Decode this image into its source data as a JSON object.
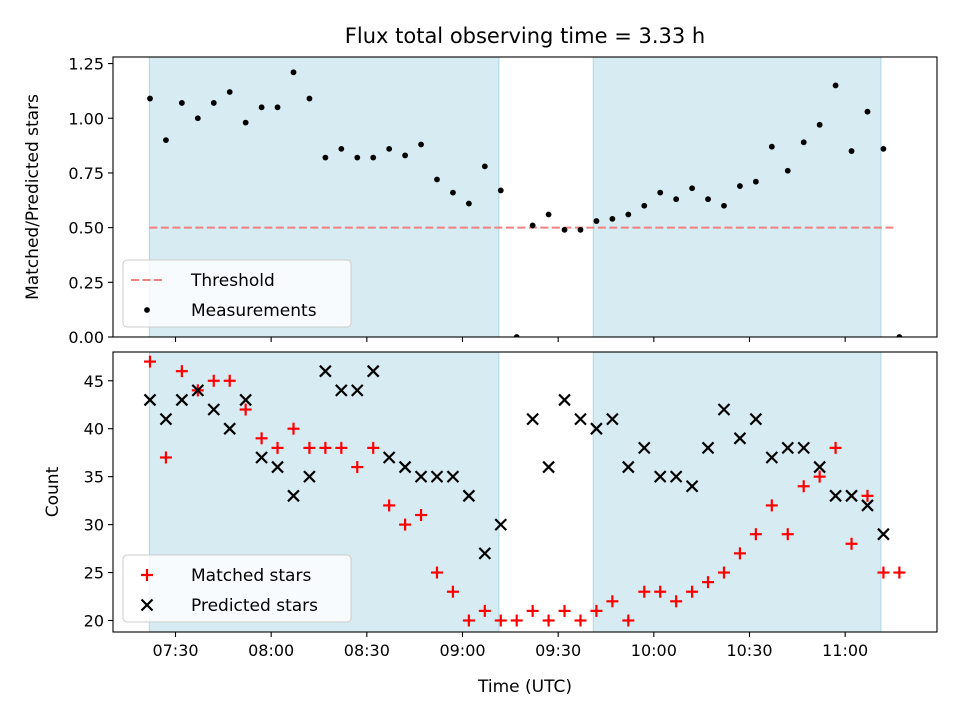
{
  "chart_data": {
    "title": "Flux total observing time = 3.33 h",
    "xlabel": "Time (UTC)",
    "x_ticks": [
      "07:30",
      "08:00",
      "08:30",
      "09:00",
      "09:30",
      "10:00",
      "10:30",
      "11:00"
    ],
    "x_tick_minutes": [
      450,
      480,
      510,
      540,
      570,
      600,
      630,
      660
    ],
    "x_range_minutes": [
      430.4,
      688.8
    ],
    "shaded_intervals_minutes": [
      [
        441.8,
        551.4
      ],
      [
        581.0,
        671.2
      ]
    ],
    "shade_color": "#add8e6",
    "panels": [
      {
        "type": "scatter",
        "ylabel": "Matched/Predicted stars",
        "ylim": [
          0.0,
          1.28
        ],
        "y_ticks": [
          "0.00",
          "0.25",
          "0.50",
          "0.75",
          "1.00",
          "1.25"
        ],
        "y_tick_values": [
          0.0,
          0.25,
          0.5,
          0.75,
          1.0,
          1.25
        ],
        "legend_position": "lower-left",
        "series": [
          {
            "name": "Threshold",
            "kind": "dashed-line",
            "color": "#f08080",
            "y": 0.5,
            "x_from": 441.8,
            "x_to": 676.2
          },
          {
            "name": "Measurements",
            "kind": "dot",
            "color": "#000000",
            "x": [
              442,
              447,
              452,
              457,
              462,
              467,
              472,
              477,
              482,
              487,
              492,
              497,
              502,
              507,
              512,
              517,
              522,
              527,
              532,
              537,
              542,
              547,
              552,
              557,
              562,
              567,
              572,
              577,
              582,
              587,
              592,
              597,
              602,
              607,
              612,
              617,
              622,
              627,
              632,
              637,
              642,
              647,
              652,
              657,
              662,
              667,
              672,
              677
            ],
            "y": [
              1.09,
              0.9,
              1.07,
              1.0,
              1.07,
              1.12,
              0.98,
              1.05,
              1.05,
              1.21,
              1.09,
              0.82,
              0.86,
              0.82,
              0.82,
              0.86,
              0.83,
              0.88,
              0.72,
              0.66,
              0.61,
              0.78,
              0.67,
              0.0,
              0.51,
              0.56,
              0.49,
              0.49,
              0.53,
              0.54,
              0.56,
              0.6,
              0.66,
              0.63,
              0.68,
              0.63,
              0.6,
              0.69,
              0.71,
              0.87,
              0.76,
              0.89,
              0.97,
              1.15,
              0.85,
              1.03,
              0.86,
              0.0
            ]
          }
        ]
      },
      {
        "type": "scatter",
        "ylabel": "Count",
        "ylim": [
          18.8,
          48.0
        ],
        "y_ticks": [
          "20",
          "25",
          "30",
          "35",
          "40",
          "45"
        ],
        "y_tick_values": [
          20,
          25,
          30,
          35,
          40,
          45
        ],
        "legend_position": "lower-left",
        "series": [
          {
            "name": "Matched stars",
            "kind": "plus",
            "color": "#ff0000",
            "x": [
              442,
              447,
              452,
              457,
              462,
              467,
              472,
              477,
              482,
              487,
              492,
              497,
              502,
              507,
              512,
              517,
              522,
              527,
              532,
              537,
              542,
              547,
              552,
              557,
              562,
              567,
              572,
              577,
              582,
              587,
              592,
              597,
              602,
              607,
              612,
              617,
              622,
              627,
              632,
              637,
              642,
              647,
              652,
              657,
              662,
              667,
              672,
              677
            ],
            "y": [
              47,
              37,
              46,
              44,
              45,
              45,
              42,
              39,
              38,
              40,
              38,
              38,
              38,
              36,
              38,
              32,
              30,
              31,
              25,
              23,
              20,
              21,
              20,
              20,
              21,
              20,
              21,
              20,
              21,
              22,
              20,
              23,
              23,
              22,
              23,
              24,
              25,
              27,
              29,
              32,
              29,
              34,
              35,
              38,
              28,
              33,
              25,
              25
            ]
          },
          {
            "name": "Predicted stars",
            "kind": "x",
            "color": "#000000",
            "x": [
              442,
              447,
              452,
              457,
              462,
              467,
              472,
              477,
              482,
              487,
              492,
              497,
              502,
              507,
              512,
              517,
              522,
              527,
              532,
              537,
              542,
              547,
              552,
              562,
              567,
              572,
              577,
              582,
              587,
              592,
              597,
              602,
              607,
              612,
              617,
              622,
              627,
              632,
              637,
              642,
              647,
              652,
              657,
              662,
              667,
              672
            ],
            "y": [
              43,
              41,
              43,
              44,
              42,
              40,
              43,
              37,
              36,
              33,
              35,
              46,
              44,
              44,
              46,
              37,
              36,
              35,
              35,
              35,
              33,
              27,
              30,
              41,
              36,
              43,
              41,
              40,
              41,
              36,
              38,
              35,
              35,
              34,
              38,
              42,
              39,
              41,
              37,
              38,
              38,
              36,
              33,
              33,
              32,
              29
            ]
          }
        ]
      }
    ]
  }
}
